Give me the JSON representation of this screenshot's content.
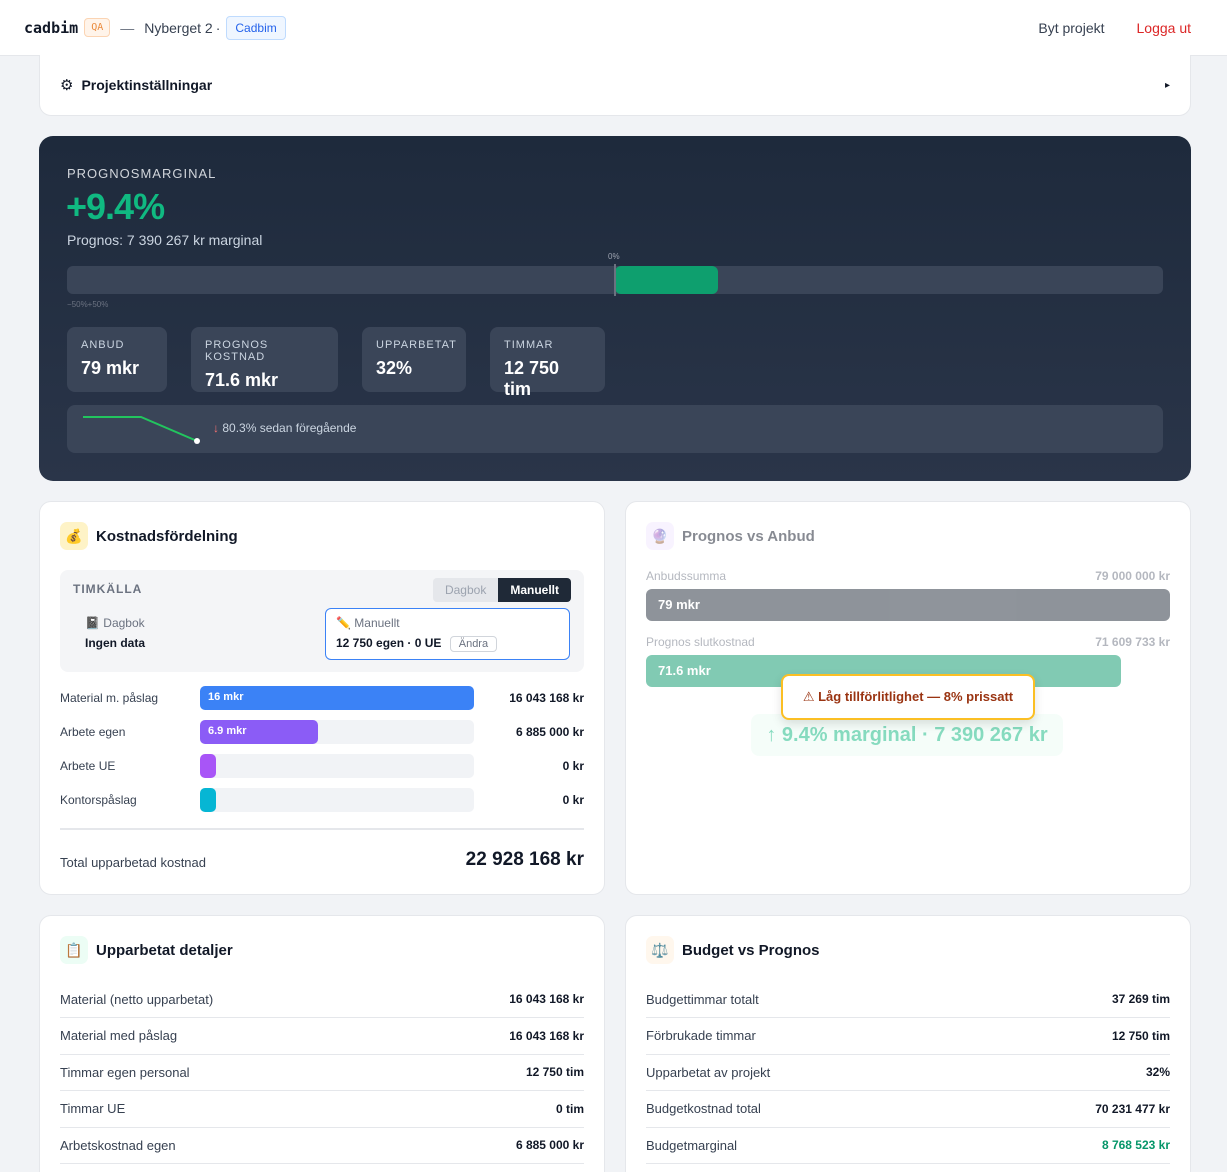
{
  "header": {
    "brand": "cadbim",
    "env_badge": "QA",
    "separator": "—",
    "project": "Nyberget 2",
    "project_dot": "·",
    "company": "Cadbim",
    "switch_project": "Byt projekt",
    "logout": "Logga ut"
  },
  "settings": {
    "icon": "gear-icon",
    "title": "Projektinställningar",
    "arrow": "▸"
  },
  "hero": {
    "label": "PROGNOSMARGINAL",
    "value": "+9.4%",
    "sub": "Prognos: 7 390 267 kr marginal",
    "zero_label": "0%",
    "range_label": "−50%+50%",
    "margin_percent": 9.4,
    "kpis": [
      {
        "label": "ANBUD",
        "value": "79 mkr"
      },
      {
        "label": "PROGNOS KOSTNAD",
        "value": "71.6 mkr"
      },
      {
        "label": "UPPARBETAT",
        "value": "32%"
      },
      {
        "label": "TIMMAR",
        "value": "12 750 tim"
      }
    ],
    "trend_arrow": "↓",
    "trend_text": "80.3% sedan föregående"
  },
  "cost": {
    "title": "Kostnadsfördelning",
    "icon": "money-bag-icon",
    "source_label": "TIMKÄLLA",
    "toggle_off": "Dagbok",
    "toggle_on": "Manuellt",
    "left_name": "📓 Dagbok",
    "left_value": "Ingen data",
    "right_name": "✏️ Manuellt",
    "right_value": "12 750 egen · 0 UE",
    "change_button": "Ändra",
    "rows": [
      {
        "label": "Material m. påslag",
        "bar_label": "16 mkr",
        "value": "16 043 168 kr",
        "share": 1.0,
        "color": "#3b82f6"
      },
      {
        "label": "Arbete egen",
        "bar_label": "6.9 mkr",
        "value": "6 885 000 kr",
        "share": 0.43,
        "color": "#8b5cf6"
      },
      {
        "label": "Arbete UE",
        "bar_label": "",
        "value": "0 kr",
        "share": 0.0,
        "color": "#a855f7"
      },
      {
        "label": "Kontorspåslag",
        "bar_label": "",
        "value": "0 kr",
        "share": 0.0,
        "color": "#06b6d4"
      }
    ],
    "total_label": "Total upparbetad kostnad",
    "total_value": "22 928 168 kr"
  },
  "pva": {
    "title": "Prognos vs Anbud",
    "icon": "crystal-ball-icon",
    "bid_label": "Anbudssumma",
    "bid_amount": "79 000 000 kr",
    "bid_bar": "79 mkr",
    "forecast_label": "Prognos slutkostnad",
    "forecast_amount": "71 609 733 kr",
    "forecast_bar": "71.6 mkr",
    "forecast_share": 0.906,
    "margin_text": "↑ 9.4% marginal · 7 390 267 kr",
    "warning": "⚠ Låg tillförlitlighet — 8% prissatt"
  },
  "details": {
    "title": "Upparbetat detaljer",
    "icon": "clipboard-icon",
    "rows": [
      {
        "label": "Material (netto upparbetat)",
        "value": "16 043 168 kr"
      },
      {
        "label": "Material med påslag",
        "value": "16 043 168 kr"
      },
      {
        "label": "Timmar egen personal",
        "value": "12 750 tim"
      },
      {
        "label": "Timmar UE",
        "value": "0 tim"
      },
      {
        "label": "Arbetskostnad egen",
        "value": "6 885 000 kr"
      }
    ]
  },
  "budget": {
    "title": "Budget vs Prognos",
    "icon": "scales-icon",
    "rows": [
      {
        "label": "Budgettimmar totalt",
        "value": "37 269 tim"
      },
      {
        "label": "Förbrukade timmar",
        "value": "12 750 tim"
      },
      {
        "label": "Upparbetat av projekt",
        "value": "32%"
      },
      {
        "label": "Budgetkostnad total",
        "value": "70 231 477 kr"
      },
      {
        "label": "Budgetmarginal",
        "value": "8 768 523 kr"
      }
    ]
  }
}
